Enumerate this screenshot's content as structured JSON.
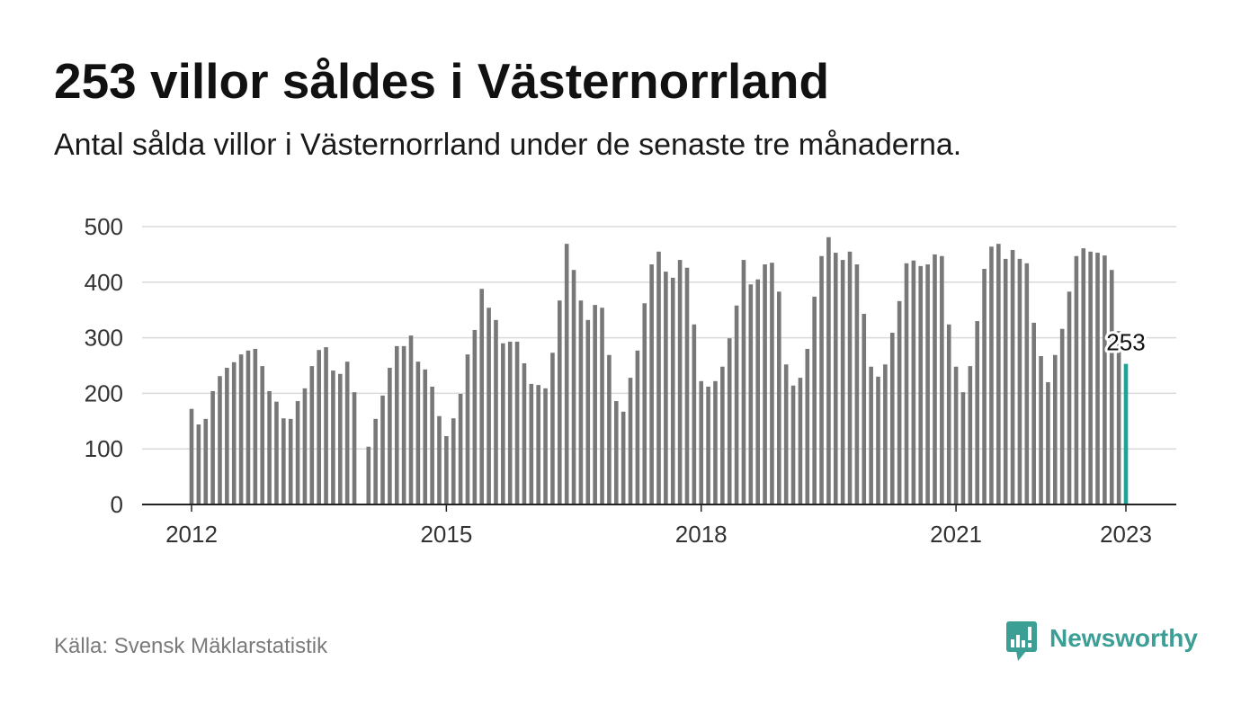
{
  "chart_data": {
    "type": "bar",
    "title": "253 villor såldes i Västernorrland",
    "subtitle": "Antal sålda villor i Västernorrland under de senaste tre månaderna.",
    "x": [
      "2012-01",
      "2012-02",
      "2012-03",
      "2012-04",
      "2012-05",
      "2012-06",
      "2012-07",
      "2012-08",
      "2012-09",
      "2012-10",
      "2012-11",
      "2012-12",
      "2013-01",
      "2013-02",
      "2013-03",
      "2013-04",
      "2013-05",
      "2013-06",
      "2013-07",
      "2013-08",
      "2013-09",
      "2013-10",
      "2013-11",
      "2013-12",
      "2014-01",
      "2014-02",
      "2014-03",
      "2014-04",
      "2014-05",
      "2014-06",
      "2014-07",
      "2014-08",
      "2014-09",
      "2014-10",
      "2014-11",
      "2014-12",
      "2015-01",
      "2015-02",
      "2015-03",
      "2015-04",
      "2015-05",
      "2015-06",
      "2015-07",
      "2015-08",
      "2015-09",
      "2015-10",
      "2015-11",
      "2015-12",
      "2016-01",
      "2016-02",
      "2016-03",
      "2016-04",
      "2016-05",
      "2016-06",
      "2016-07",
      "2016-08",
      "2016-09",
      "2016-10",
      "2016-11",
      "2016-12",
      "2017-01",
      "2017-02",
      "2017-03",
      "2017-04",
      "2017-05",
      "2017-06",
      "2017-07",
      "2017-08",
      "2017-09",
      "2017-10",
      "2017-11",
      "2017-12",
      "2018-01",
      "2018-02",
      "2018-03",
      "2018-04",
      "2018-05",
      "2018-06",
      "2018-07",
      "2018-08",
      "2018-09",
      "2018-10",
      "2018-11",
      "2018-12",
      "2019-01",
      "2019-02",
      "2019-03",
      "2019-04",
      "2019-05",
      "2019-06",
      "2019-07",
      "2019-08",
      "2019-09",
      "2019-10",
      "2019-11",
      "2019-12",
      "2020-01",
      "2020-02",
      "2020-03",
      "2020-04",
      "2020-05",
      "2020-06",
      "2020-07",
      "2020-08",
      "2020-09",
      "2020-10",
      "2020-11",
      "2020-12",
      "2021-01",
      "2021-02",
      "2021-03",
      "2021-04",
      "2021-05",
      "2021-06",
      "2021-07",
      "2021-08",
      "2021-09",
      "2021-10",
      "2021-11",
      "2021-12",
      "2022-01",
      "2022-02",
      "2022-03",
      "2022-04",
      "2022-05",
      "2022-06",
      "2022-07",
      "2022-08",
      "2022-09",
      "2022-10",
      "2022-11",
      "2022-12",
      "2023-01"
    ],
    "values": [
      172,
      144,
      154,
      204,
      231,
      246,
      256,
      270,
      277,
      280,
      249,
      204,
      185,
      155,
      154,
      186,
      209,
      249,
      278,
      283,
      241,
      235,
      257,
      202,
      null,
      104,
      154,
      196,
      246,
      285,
      285,
      304,
      257,
      243,
      212,
      159,
      123,
      155,
      199,
      270,
      314,
      388,
      354,
      332,
      290,
      293,
      293,
      254,
      217,
      215,
      209,
      273,
      367,
      469,
      422,
      367,
      332,
      359,
      354,
      269,
      186,
      167,
      228,
      277,
      362,
      432,
      455,
      419,
      408,
      440,
      426,
      324,
      222,
      212,
      222,
      248,
      299,
      358,
      440,
      396,
      405,
      432,
      435,
      383,
      252,
      214,
      228,
      280,
      374,
      447,
      481,
      453,
      440,
      455,
      432,
      343,
      248,
      230,
      252,
      309,
      366,
      434,
      439,
      429,
      432,
      450,
      447,
      324,
      248,
      202,
      249,
      330,
      424,
      464,
      469,
      442,
      458,
      442,
      434,
      327,
      267,
      220,
      269,
      316,
      383,
      447,
      461,
      455,
      453,
      448,
      422,
      312,
      253
    ],
    "xticks": [
      {
        "label": "2012",
        "x": "2012-01"
      },
      {
        "label": "2015",
        "x": "2015-01"
      },
      {
        "label": "2018",
        "x": "2018-01"
      },
      {
        "label": "2021",
        "x": "2021-01"
      },
      {
        "label": "2023",
        "x": "2023-01"
      }
    ],
    "yticks": [
      0,
      100,
      200,
      300,
      400,
      500
    ],
    "ylim": [
      0,
      500
    ],
    "grid": true,
    "annotation": {
      "x": "2023-01",
      "label": "253"
    }
  },
  "source": "Källa: Svensk Mäklarstatistik",
  "brand": {
    "name": "Newsworthy",
    "icon": "newsworthy-logo-icon"
  },
  "colors": {
    "bar": "#787878",
    "highlight": "#1fa397",
    "grid": "#dadada",
    "axis": "#222222",
    "brand": "#3b9f95"
  }
}
